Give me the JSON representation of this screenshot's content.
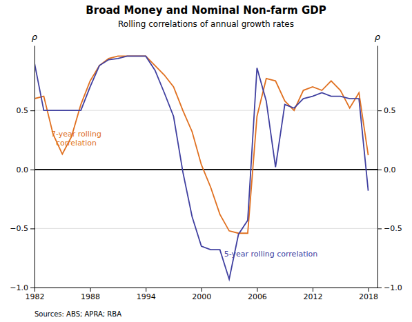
{
  "chart_data": {
    "type": "line",
    "title": "Broad Money and Nominal Non-farm GDP",
    "subtitle": "Rolling correlations of annual growth rates",
    "ylabel": "ρ",
    "y2label": "ρ",
    "source": "Sources:  ABS; APRA; RBA",
    "x": [
      1982,
      1983,
      1984,
      1985,
      1986,
      1987,
      1988,
      1989,
      1990,
      1991,
      1992,
      1993,
      1994,
      1995,
      1996,
      1997,
      1998,
      1999,
      2000,
      2001,
      2002,
      2003,
      2004,
      2005,
      2006,
      2007,
      2008,
      2009,
      2010,
      2011,
      2012,
      2013,
      2014,
      2015,
      2016,
      2017,
      2018
    ],
    "series": [
      {
        "color": "#E07020",
        "values": [
          0.6,
          0.62,
          0.3,
          0.13,
          0.28,
          0.55,
          0.75,
          0.88,
          0.94,
          0.96,
          0.96,
          0.96,
          0.96,
          0.88,
          0.8,
          0.7,
          0.5,
          0.32,
          0.04,
          -0.15,
          -0.38,
          -0.52,
          -0.54,
          -0.54,
          0.45,
          0.77,
          0.75,
          0.58,
          0.5,
          0.67,
          0.7,
          0.67,
          0.75,
          0.67,
          0.52,
          0.65,
          0.12
        ]
      },
      {
        "color": "#4040A0",
        "values": [
          0.9,
          0.5,
          0.5,
          0.5,
          0.5,
          0.5,
          0.7,
          0.88,
          0.93,
          0.94,
          0.96,
          0.96,
          0.96,
          0.84,
          0.65,
          0.45,
          -0.02,
          -0.4,
          -0.65,
          -0.68,
          -0.68,
          -0.93,
          -0.55,
          -0.43,
          0.86,
          0.58,
          0.02,
          0.55,
          0.52,
          0.6,
          0.62,
          0.65,
          0.62,
          0.62,
          0.6,
          0.6,
          -0.18
        ]
      }
    ],
    "annotations": [
      {
        "text": "7-year rolling\ncorrelation",
        "x": 1986.5,
        "y": 0.26,
        "color": "#E07020"
      },
      {
        "text": "5-year rolling correlation",
        "x": 2007.5,
        "y": -0.72,
        "color": "#4040A0"
      }
    ],
    "xlim": [
      1982,
      2019
    ],
    "xticks": [
      1982,
      1988,
      1994,
      2000,
      2006,
      2012,
      2018
    ],
    "ylim": [
      -1.0,
      1.05
    ],
    "yticks": [
      {
        "value": -1.0,
        "label": "−1.0"
      },
      {
        "value": -0.5,
        "label": "−0.5"
      },
      {
        "value": 0.0,
        "label": "0.0"
      },
      0.5
    ],
    "y2lim": [
      -1.0,
      1.05
    ],
    "y2ticks": [
      {
        "value": -1.0,
        "label": "−1.0"
      },
      {
        "value": -0.5,
        "label": "−0.5"
      },
      {
        "value": 0.0,
        "label": "0.0"
      },
      0.5
    ],
    "grid": true
  }
}
